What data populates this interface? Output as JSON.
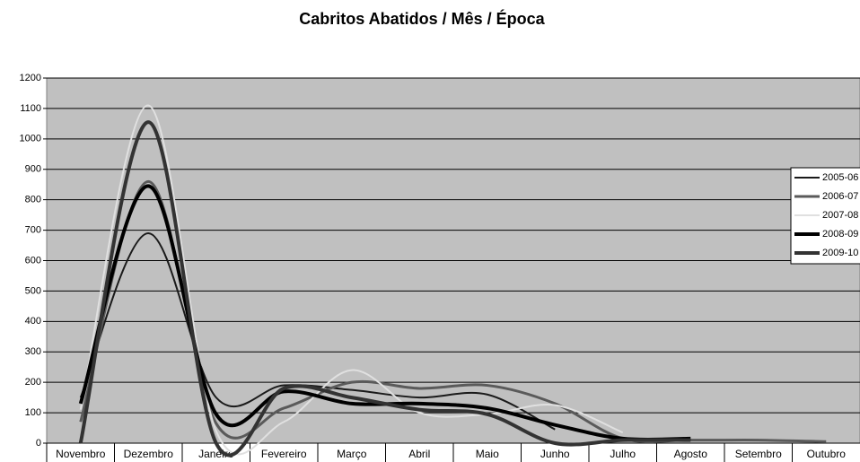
{
  "chart_data": {
    "type": "line",
    "title": "Cabritos Abatidos / Mês / Época",
    "categories": [
      "Novembro",
      "Dezembro",
      "Janeiro",
      "Fevereiro",
      "Março",
      "Abril",
      "Maio",
      "Junho",
      "Julho",
      "Agosto",
      "Setembro",
      "Outubro"
    ],
    "series": [
      {
        "name": "2005-06",
        "color": "#1a1a1a",
        "values": [
          150,
          690,
          150,
          190,
          175,
          150,
          160,
          45,
          null,
          null,
          null,
          null
        ]
      },
      {
        "name": "2006-07",
        "color": "#5a5a5a",
        "values": [
          70,
          860,
          65,
          115,
          200,
          180,
          190,
          130,
          15,
          10,
          10,
          5
        ]
      },
      {
        "name": "2007-08",
        "color": "#e0e0e0",
        "values": [
          110,
          1110,
          40,
          70,
          240,
          100,
          95,
          125,
          35,
          null,
          null,
          null
        ]
      },
      {
        "name": "2008-09",
        "color": "#000000",
        "values": [
          130,
          845,
          95,
          170,
          130,
          130,
          115,
          60,
          15,
          15,
          null,
          null
        ]
      },
      {
        "name": "2009-10",
        "color": "#333333",
        "values": [
          0,
          1055,
          0,
          180,
          150,
          110,
          95,
          0,
          10,
          10,
          null,
          null
        ]
      }
    ],
    "ylim": [
      0,
      1200
    ],
    "yticks": [
      0,
      100,
      200,
      300,
      400,
      500,
      600,
      700,
      800,
      900,
      1000,
      1100,
      1200
    ],
    "grid": true,
    "legend": "right"
  }
}
